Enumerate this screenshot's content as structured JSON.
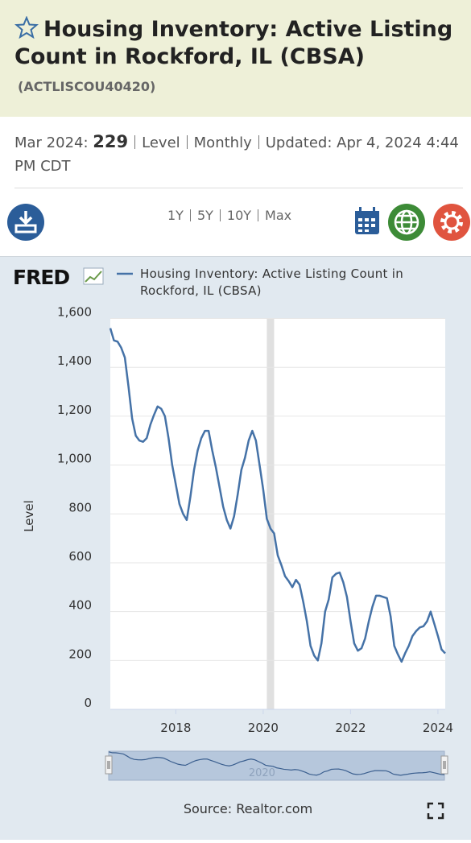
{
  "header": {
    "title": "Housing Inventory: Active Listing Count in Rockford, IL (CBSA)",
    "series_id": "(ACTLISCOU40420)"
  },
  "info": {
    "date": "Mar 2024:",
    "value": "229",
    "units": "Level",
    "frequency": "Monthly",
    "updated_label": "Updated:",
    "updated": "Apr 4, 2024 4:44 PM CDT"
  },
  "toolbar": {
    "ranges": [
      "1Y",
      "5Y",
      "10Y",
      "Max"
    ]
  },
  "logo": "FRED",
  "source": "Source: Realtor.com",
  "chart_data": {
    "type": "line",
    "ylabel": "Level",
    "x": [
      2016.5,
      2016.583,
      2016.667,
      2016.75,
      2016.833,
      2016.917,
      2017,
      2017.083,
      2017.167,
      2017.25,
      2017.333,
      2017.417,
      2017.5,
      2017.583,
      2017.667,
      2017.75,
      2017.833,
      2017.917,
      2018,
      2018.083,
      2018.167,
      2018.25,
      2018.333,
      2018.417,
      2018.5,
      2018.583,
      2018.667,
      2018.75,
      2018.833,
      2018.917,
      2019,
      2019.083,
      2019.167,
      2019.25,
      2019.333,
      2019.417,
      2019.5,
      2019.583,
      2019.667,
      2019.75,
      2019.833,
      2019.917,
      2020,
      2020.083,
      2020.167,
      2020.25,
      2020.333,
      2020.417,
      2020.5,
      2020.583,
      2020.667,
      2020.75,
      2020.833,
      2020.917,
      2021,
      2021.083,
      2021.167,
      2021.25,
      2021.333,
      2021.417,
      2021.5,
      2021.583,
      2021.667,
      2021.75,
      2021.833,
      2021.917,
      2022,
      2022.083,
      2022.167,
      2022.25,
      2022.333,
      2022.417,
      2022.5,
      2022.583,
      2022.667,
      2022.75,
      2022.833,
      2022.917,
      2023,
      2023.083,
      2023.167,
      2023.25,
      2023.333,
      2023.417,
      2023.5,
      2023.583,
      2023.667,
      2023.75,
      2023.833,
      2023.917,
      2024,
      2024.083,
      2024.167
    ],
    "series": [
      {
        "name": "Housing Inventory: Active Listing Count in Rockford, IL (CBSA)",
        "color": "#4572a7",
        "values": [
          1560,
          1510,
          1505,
          1480,
          1440,
          1320,
          1190,
          1120,
          1100,
          1095,
          1110,
          1165,
          1205,
          1240,
          1230,
          1200,
          1110,
          1000,
          920,
          840,
          800,
          775,
          870,
          980,
          1060,
          1110,
          1140,
          1140,
          1060,
          990,
          910,
          830,
          775,
          740,
          790,
          880,
          980,
          1030,
          1100,
          1140,
          1100,
          1000,
          900,
          780,
          740,
          720,
          630,
          590,
          545,
          525,
          500,
          530,
          510,
          440,
          360,
          260,
          220,
          200,
          270,
          400,
          450,
          540,
          555,
          560,
          520,
          460,
          360,
          270,
          240,
          250,
          290,
          360,
          420,
          465,
          465,
          460,
          455,
          380,
          260,
          225,
          195,
          230,
          260,
          300,
          320,
          335,
          340,
          360,
          400,
          350,
          300,
          245,
          229
        ]
      }
    ],
    "xlim": [
      2016.5,
      2024.167
    ],
    "xticks": [
      2018,
      2020,
      2022,
      2024
    ],
    "ylim": [
      0,
      1600
    ],
    "yticks": [
      0,
      200,
      400,
      600,
      800,
      {
        "value": 1000,
        "label": "1,000"
      },
      {
        "value": 1200,
        "label": "1,200"
      },
      {
        "value": 1400,
        "label": "1,400"
      },
      {
        "value": 1600,
        "label": "1,600"
      }
    ],
    "recessions": [
      {
        "start": 2020.083,
        "end": 2020.25
      }
    ],
    "recession_color": "#e0e0e0",
    "grid": true
  }
}
